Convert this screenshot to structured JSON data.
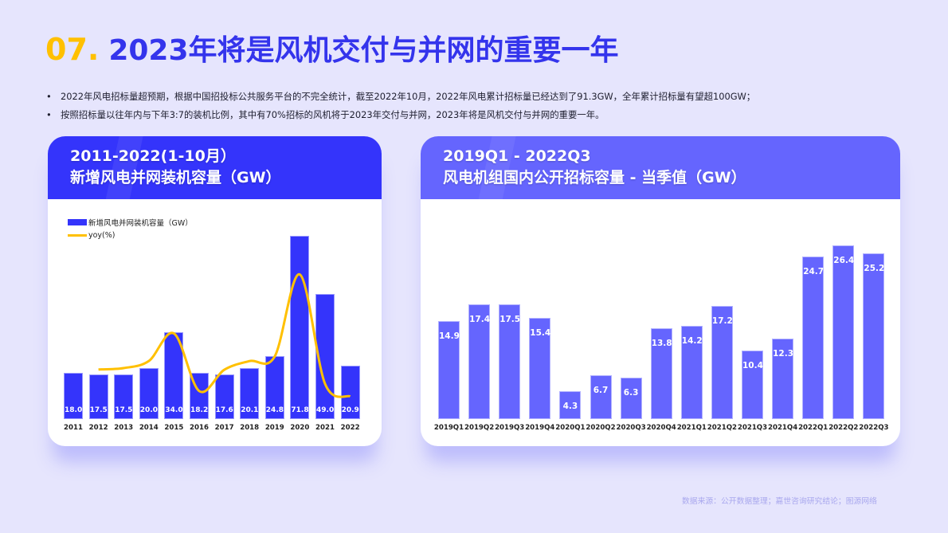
{
  "title": {
    "number": "07.",
    "text": "2023年将是风机交付与并网的重要一年"
  },
  "bullets": [
    "2022年风电招标量超预期，根据中国招投标公共服务平台的不完全统计，截至2022年10月，2022年风电累计招标量已经达到了91.3GW，全年累计招标量有望超100GW；",
    "按照招标量以往年内与下年3:7的装机比例，其中有70%招标的风机将于2023年交付与并网，2023年将是风机交付与并网的重要一年。"
  ],
  "bullet_symbol": "•",
  "left_card": {
    "title_line1": "2011-2022(1-10月）",
    "title_line2": "新增风电并网装机容量（GW）",
    "legend": {
      "bar": "新增风电并网装机容量（GW）",
      "line": "yoy(%)"
    }
  },
  "right_card": {
    "title_line1": "2019Q1 - 2022Q3",
    "title_line2": "风电机组国内公开招标容量 - 当季值（GW）"
  },
  "source": "数据来源：公开数据整理；嘉世咨询研究结论；图源网络",
  "colors": {
    "accent_yellow": "#ffc000",
    "title_blue": "#3434ec",
    "bar_left": "#3434fb",
    "bar_right": "#6565fe",
    "background": "#e6e5fd"
  },
  "chart_data": [
    {
      "type": "bar",
      "title": "2011-2022(1-10月) 新增风电并网装机容量（GW）",
      "categories": [
        "2011",
        "2012",
        "2013",
        "2014",
        "2015",
        "2016",
        "2017",
        "2018",
        "2019",
        "2020",
        "2021",
        "2022"
      ],
      "series": [
        {
          "name": "新增风电并网装机容量（GW）",
          "type": "bar",
          "values": [
            18.0,
            17.5,
            17.5,
            20.0,
            34.0,
            18.2,
            17.6,
            20.1,
            24.8,
            71.8,
            49.0,
            20.9
          ]
        },
        {
          "name": "yoy(%)",
          "type": "line",
          "values": [
            null,
            -2.8,
            0.0,
            14.3,
            70.0,
            -46.5,
            -3.3,
            14.2,
            23.4,
            189.5,
            -31.8,
            -57.3
          ]
        }
      ],
      "legend_position": "top-left",
      "grid": false,
      "xlabel": "",
      "ylabel": ""
    },
    {
      "type": "bar",
      "title": "2019Q1 - 2022Q3 风电机组国内公开招标容量 - 当季值（GW）",
      "categories": [
        "2019Q1",
        "2019Q2",
        "2019Q3",
        "2019Q4",
        "2020Q1",
        "2020Q2",
        "2020Q3",
        "2020Q4",
        "2021Q1",
        "2021Q2",
        "2021Q3",
        "2021Q4",
        "2022Q1",
        "2022Q2",
        "2022Q3"
      ],
      "values": [
        14.9,
        17.4,
        17.5,
        15.4,
        4.3,
        6.7,
        6.3,
        13.8,
        14.2,
        17.2,
        10.4,
        12.3,
        24.7,
        26.4,
        25.2
      ],
      "grid": false,
      "xlabel": "",
      "ylabel": ""
    }
  ]
}
